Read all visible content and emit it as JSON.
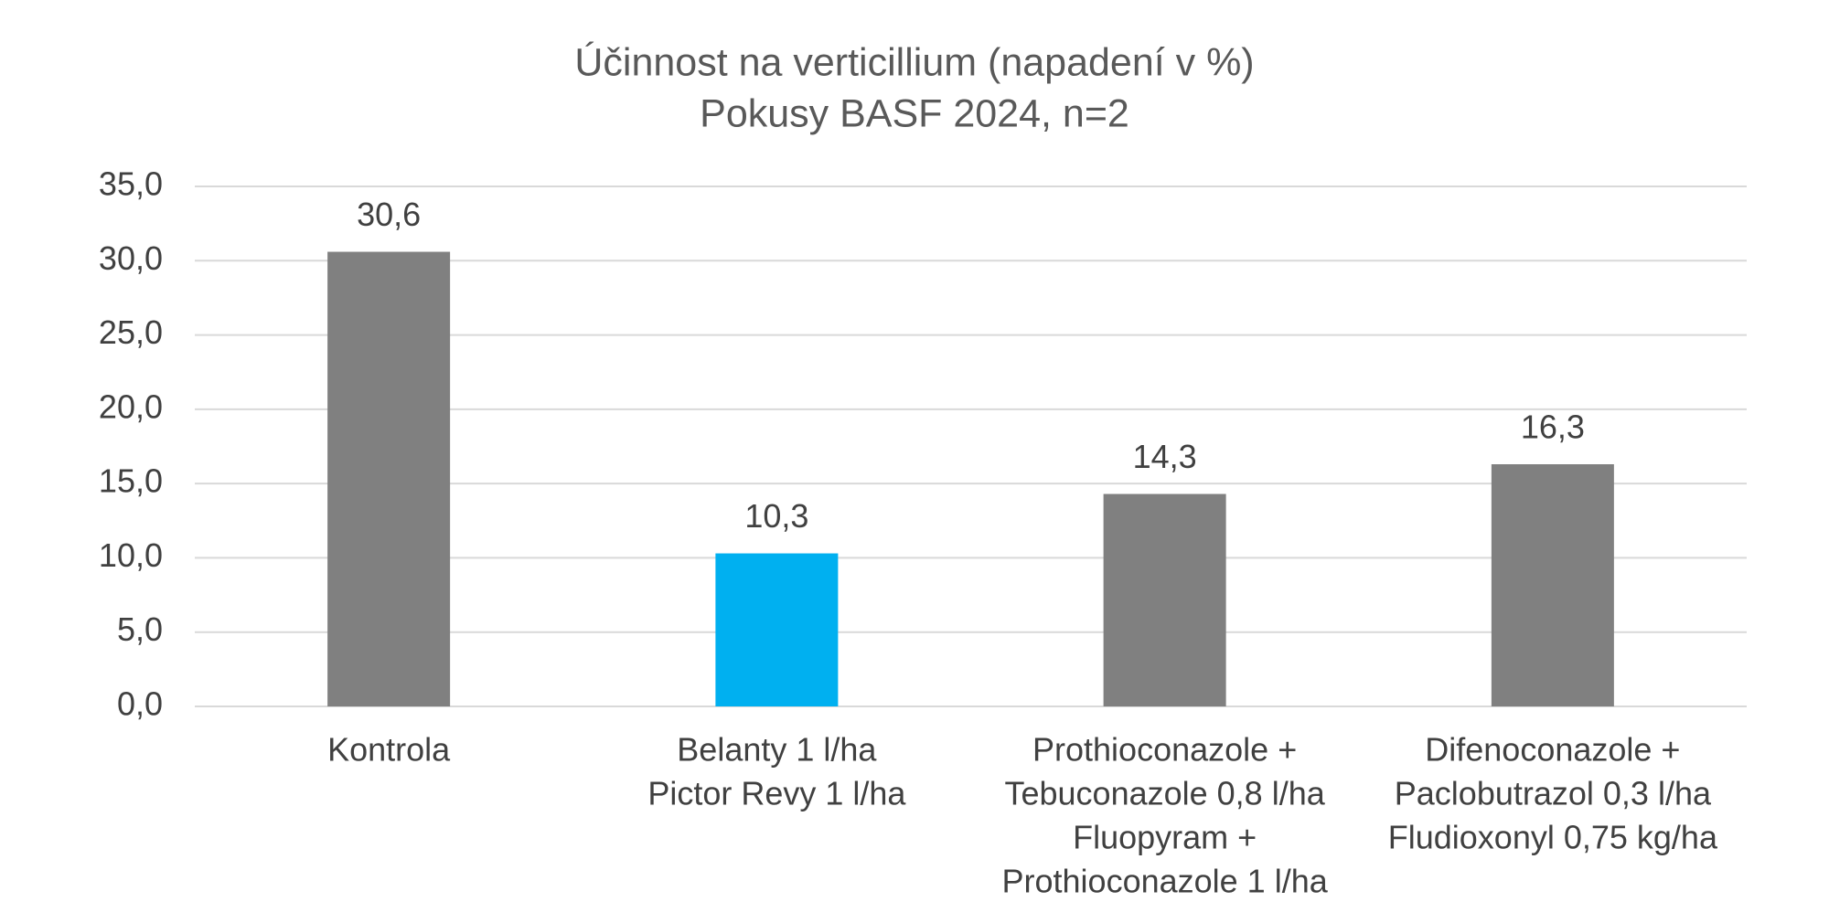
{
  "chart_data": {
    "type": "bar",
    "title": "Účinnost na verticillium (napadení v %)",
    "subtitle": "Pokusy BASF 2024, n=2",
    "categories": [
      [
        "Kontrola"
      ],
      [
        "Belanty 1 l/ha",
        "Pictor Revy 1 l/ha"
      ],
      [
        "Prothioconazole +",
        "Tebuconazole 0,8 l/ha",
        "Fluopyram +",
        "Prothioconazole 1 l/ha"
      ],
      [
        "Difenoconazole +",
        "Paclobutrazol 0,3 l/ha",
        "Fludioxonyl 0,75 kg/ha"
      ]
    ],
    "values": [
      30.6,
      10.3,
      14.3,
      16.3
    ],
    "value_labels": [
      "30,6",
      "10,3",
      "14,3",
      "16,3"
    ],
    "colors": [
      "#808080",
      "#00b0f0",
      "#808080",
      "#808080"
    ],
    "ylim": [
      0,
      35
    ],
    "yticks": [
      {
        "value": 0,
        "label": "0,0"
      },
      {
        "value": 5,
        "label": "5,0"
      },
      {
        "value": 10,
        "label": "10,0"
      },
      {
        "value": 15,
        "label": "15,0"
      },
      {
        "value": 20,
        "label": "20,0"
      },
      {
        "value": 25,
        "label": "25,0"
      },
      {
        "value": 30,
        "label": "30,0"
      },
      {
        "value": 35,
        "label": "35,0"
      }
    ],
    "grid": true
  }
}
